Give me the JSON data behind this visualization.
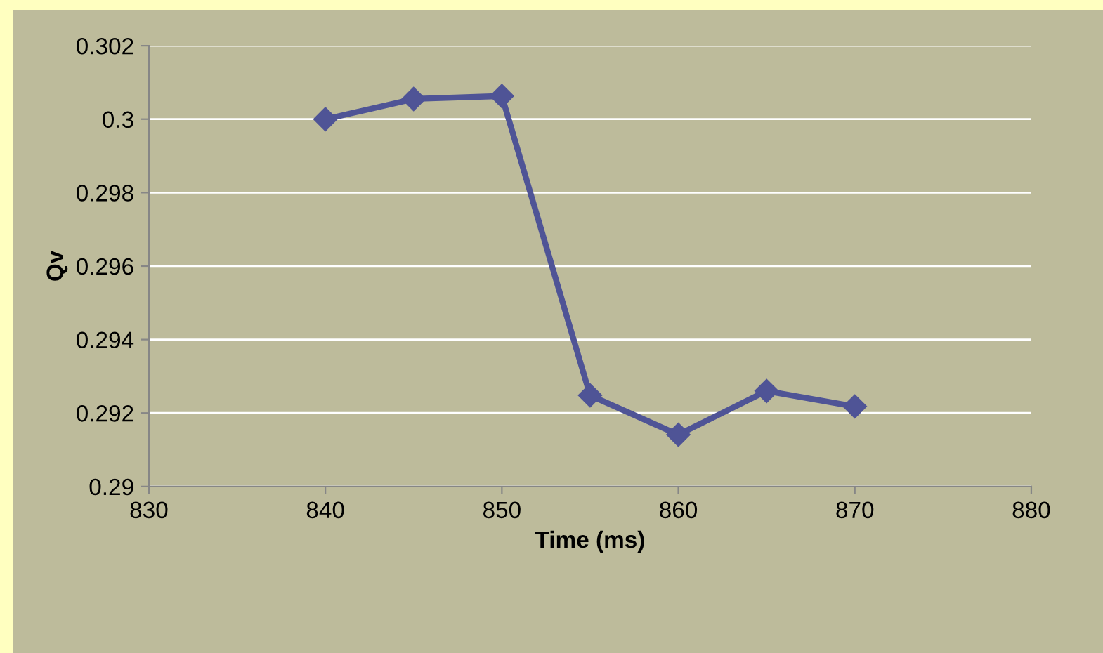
{
  "chart_data": {
    "type": "line",
    "xlabel": "Time (ms)",
    "ylabel": "Qv",
    "x": [
      840,
      845,
      850,
      855,
      860,
      865,
      870
    ],
    "series": [
      {
        "color": "#4f5496",
        "values": [
          0.3,
          0.30055,
          0.30063,
          0.29248,
          0.29141,
          0.2926,
          0.29218
        ]
      }
    ],
    "xlim": [
      830,
      880
    ],
    "xticks": [
      830,
      840,
      850,
      860,
      870,
      880
    ],
    "ylim": [
      0.29,
      0.302
    ],
    "yticks": [
      {
        "value": 0.29,
        "label": "0.29"
      },
      {
        "value": 0.292,
        "label": "0.292"
      },
      {
        "value": 0.294,
        "label": "0.294"
      },
      {
        "value": 0.296,
        "label": "0.296"
      },
      {
        "value": 0.298,
        "label": "0.298"
      },
      {
        "value": 0.3,
        "label": "0.3"
      },
      {
        "value": 0.302,
        "label": "0.302"
      }
    ],
    "grid": "y",
    "marker": "diamond",
    "line_style": "solid",
    "legend": false
  }
}
